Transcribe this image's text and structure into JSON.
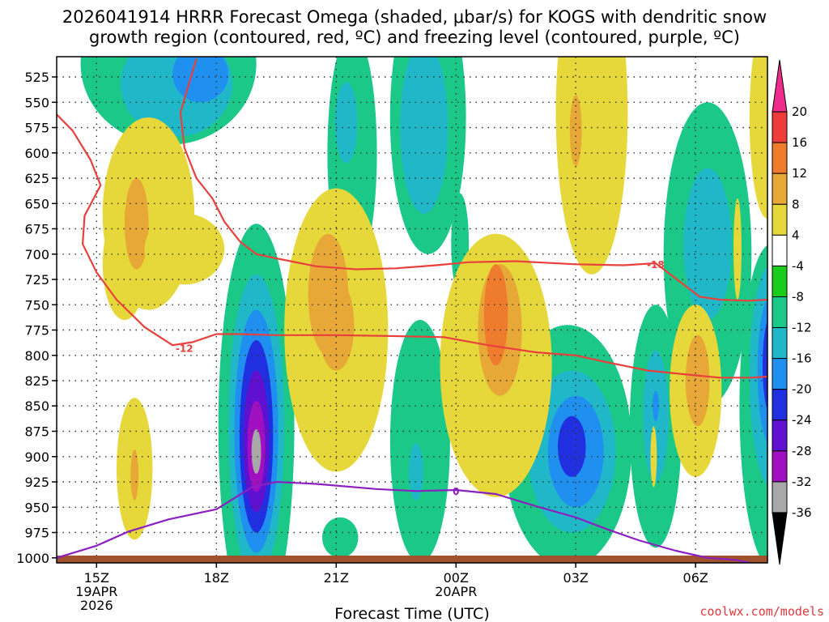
{
  "title": {
    "line1": "2026041914 HRRR Forecast Omega (shaded, μbar/s) for KOGS with dendritic snow",
    "line2": "growth region (contoured, red, ºC) and freezing level (contoured, purple, ºC)"
  },
  "xlabel": "Forecast Time (UTC)",
  "credit": "coolwx.com/models",
  "colors": {
    "frame": "#000000",
    "grid": "#333333",
    "ground": "#a0522d",
    "dgz_contour": "#e8403c",
    "freezing_contour": "#8c1fc0"
  },
  "chart_data": {
    "type": "heatmap",
    "title": "2026041914 HRRR Forecast Omega (shaded, μbar/s) for KOGS with dendritic snow growth region (contoured, red, ºC) and freezing level (contoured, purple, ºC)",
    "xlabel": "Forecast Time (UTC)",
    "ylabel": "Pressure (hPa)",
    "xlim": [
      14.0,
      31.8
    ],
    "ylim": [
      1005,
      505
    ],
    "grid": true,
    "x_ticks": [
      {
        "value": 15,
        "label": "15Z",
        "sub1": "19APR",
        "sub2": "2026"
      },
      {
        "value": 18,
        "label": "18Z"
      },
      {
        "value": 21,
        "label": "21Z"
      },
      {
        "value": 24,
        "label": "00Z",
        "sub1": "20APR"
      },
      {
        "value": 27,
        "label": "03Z"
      },
      {
        "value": 30,
        "label": "06Z"
      }
    ],
    "y_ticks": [
      525,
      550,
      575,
      600,
      625,
      650,
      675,
      700,
      725,
      750,
      775,
      800,
      825,
      850,
      875,
      900,
      925,
      950,
      975,
      1000
    ],
    "colorbar": {
      "labels": [
        "20",
        "16",
        "12",
        "8",
        "4",
        "-4",
        "-8",
        "-12",
        "-16",
        "-20",
        "-24",
        "-28",
        "-32",
        "-36"
      ],
      "bins": [
        {
          "color": "#ee2c8c"
        },
        {
          "color": "#ee3c3c"
        },
        {
          "color": "#ee7c2c"
        },
        {
          "color": "#e8a838"
        },
        {
          "color": "#e6d83a"
        },
        {
          "color": "#ffffff"
        },
        {
          "color": "#1ccc1c"
        },
        {
          "color": "#1cc888"
        },
        {
          "color": "#20b8c8"
        },
        {
          "color": "#2090f0"
        },
        {
          "color": "#2030e0"
        },
        {
          "color": "#6010d0"
        },
        {
          "color": "#a010c0"
        },
        {
          "color": "#a8a8a8"
        },
        {
          "color": "#000000"
        }
      ]
    },
    "omega_features": [
      {
        "t": 16.8,
        "p": 512,
        "rt": 2.2,
        "rp": 80,
        "value": -8
      },
      {
        "t": 17.0,
        "p": 532,
        "rt": 1.4,
        "rp": 52,
        "value": -12
      },
      {
        "t": 17.6,
        "p": 522,
        "rt": 0.7,
        "rp": 28,
        "value": -16
      },
      {
        "t": 21.4,
        "p": 600,
        "rt": 0.62,
        "rp": 120,
        "value": -8
      },
      {
        "t": 21.25,
        "p": 570,
        "rt": 0.28,
        "rp": 40,
        "value": -12
      },
      {
        "t": 23.3,
        "p": 565,
        "rt": 0.95,
        "rp": 135,
        "value": -8
      },
      {
        "t": 23.2,
        "p": 575,
        "rt": 0.6,
        "rp": 85,
        "value": -12
      },
      {
        "t": 24.1,
        "p": 690,
        "rt": 0.22,
        "rp": 50,
        "value": -8
      },
      {
        "t": 30.3,
        "p": 700,
        "rt": 1.1,
        "rp": 150,
        "value": -8
      },
      {
        "t": 30.3,
        "p": 690,
        "rt": 0.6,
        "rp": 75,
        "value": -12
      },
      {
        "t": 19.0,
        "p": 870,
        "rt": 0.95,
        "rp": 200,
        "value": -8
      },
      {
        "t": 19.0,
        "p": 870,
        "rt": 0.7,
        "rp": 150,
        "value": -12
      },
      {
        "t": 19.0,
        "p": 875,
        "rt": 0.55,
        "rp": 120,
        "value": -16
      },
      {
        "t": 19.0,
        "p": 880,
        "rt": 0.42,
        "rp": 95,
        "value": -20
      },
      {
        "t": 19.0,
        "p": 885,
        "rt": 0.32,
        "rp": 70,
        "value": -24
      },
      {
        "t": 19.0,
        "p": 890,
        "rt": 0.22,
        "rp": 45,
        "value": -28
      },
      {
        "t": 19.0,
        "p": 895,
        "rt": 0.12,
        "rp": 22,
        "value": -32
      },
      {
        "t": 23.1,
        "p": 885,
        "rt": 0.75,
        "rp": 120,
        "value": -8
      },
      {
        "t": 23.0,
        "p": 915,
        "rt": 0.18,
        "rp": 28,
        "value": -12
      },
      {
        "t": 21.1,
        "p": 980,
        "rt": 0.45,
        "rp": 20,
        "value": -8
      },
      {
        "t": 26.8,
        "p": 890,
        "rt": 1.6,
        "rp": 120,
        "value": -8
      },
      {
        "t": 26.9,
        "p": 895,
        "rt": 1.1,
        "rp": 80,
        "value": -12
      },
      {
        "t": 27.0,
        "p": 895,
        "rt": 0.7,
        "rp": 55,
        "value": -16
      },
      {
        "t": 26.9,
        "p": 890,
        "rt": 0.35,
        "rp": 30,
        "value": -20
      },
      {
        "t": 29.0,
        "p": 870,
        "rt": 0.65,
        "rp": 120,
        "value": -8
      },
      {
        "t": 29.0,
        "p": 860,
        "rt": 0.32,
        "rp": 65,
        "value": -12
      },
      {
        "t": 29.0,
        "p": 850,
        "rt": 0.08,
        "rp": 15,
        "value": -16
      },
      {
        "t": 31.9,
        "p": 850,
        "rt": 0.8,
        "rp": 160,
        "value": -8
      },
      {
        "t": 31.9,
        "p": 820,
        "rt": 0.55,
        "rp": 110,
        "value": -12
      },
      {
        "t": 31.9,
        "p": 815,
        "rt": 0.35,
        "rp": 75,
        "value": -16
      },
      {
        "t": 31.9,
        "p": 810,
        "rt": 0.22,
        "rp": 50,
        "value": -20
      },
      {
        "t": 31.9,
        "p": 805,
        "rt": 0.12,
        "rp": 25,
        "value": -24
      },
      {
        "t": 16.3,
        "p": 660,
        "rt": 1.15,
        "rp": 95,
        "value": 4
      },
      {
        "t": 15.7,
        "p": 710,
        "rt": 0.55,
        "rp": 55,
        "value": 4
      },
      {
        "t": 16.0,
        "p": 670,
        "rt": 0.3,
        "rp": 45,
        "value": 8
      },
      {
        "t": 15.95,
        "p": 912,
        "rt": 0.45,
        "rp": 70,
        "value": 4
      },
      {
        "t": 15.95,
        "p": 918,
        "rt": 0.1,
        "rp": 25,
        "value": 8
      },
      {
        "t": 17.2,
        "p": 695,
        "rt": 1.0,
        "rp": 35,
        "value": 4
      },
      {
        "t": 21.0,
        "p": 775,
        "rt": 1.3,
        "rp": 140,
        "value": 4
      },
      {
        "t": 20.8,
        "p": 740,
        "rt": 0.5,
        "rp": 60,
        "value": 8
      },
      {
        "t": 21.0,
        "p": 770,
        "rt": 0.45,
        "rp": 45,
        "value": 8
      },
      {
        "t": 25.0,
        "p": 810,
        "rt": 1.4,
        "rp": 130,
        "value": 4
      },
      {
        "t": 25.0,
        "p": 760,
        "rt": 1.1,
        "rp": 80,
        "value": 4
      },
      {
        "t": 25.1,
        "p": 775,
        "rt": 0.55,
        "rp": 65,
        "value": 8
      },
      {
        "t": 25.0,
        "p": 760,
        "rt": 0.3,
        "rp": 50,
        "value": 12
      },
      {
        "t": 27.4,
        "p": 560,
        "rt": 0.9,
        "rp": 160,
        "value": 4
      },
      {
        "t": 27.0,
        "p": 578,
        "rt": 0.15,
        "rp": 35,
        "value": 8
      },
      {
        "t": 30.0,
        "p": 835,
        "rt": 0.65,
        "rp": 85,
        "value": 4
      },
      {
        "t": 30.05,
        "p": 825,
        "rt": 0.3,
        "rp": 45,
        "value": 8
      },
      {
        "t": 31.8,
        "p": 565,
        "rt": 0.45,
        "rp": 100,
        "value": 4
      },
      {
        "t": 31.05,
        "p": 695,
        "rt": 0.1,
        "rp": 50,
        "value": 4
      },
      {
        "t": 28.95,
        "p": 900,
        "rt": 0.08,
        "rp": 30,
        "value": 4
      }
    ],
    "dgz_contours": [
      {
        "label": "-12",
        "label_pos": [
          17.2,
          793
        ],
        "t": [
          14.0,
          14.4,
          14.85,
          15.1,
          14.7,
          14.65,
          15.0,
          15.5,
          16.2,
          16.9,
          17.4,
          18.0,
          18.6,
          19.5,
          21.0,
          22.5,
          23.7,
          24.8,
          26.0,
          27.0,
          27.8,
          28.8,
          29.8,
          30.6,
          31.4,
          31.8
        ],
        "p": [
          562,
          578,
          607,
          632,
          662,
          690,
          718,
          745,
          772,
          790,
          787,
          779,
          779,
          780,
          780,
          781,
          782,
          790,
          797,
          800,
          807,
          815,
          819,
          822,
          822,
          821
        ]
      },
      {
        "label": "-18",
        "label_pos": [
          29.0,
          710
        ],
        "t": [
          17.5,
          17.1,
          17.2,
          17.5,
          17.9,
          18.2,
          18.6,
          19.0,
          19.6,
          20.5,
          21.5,
          22.5,
          23.5,
          24.3,
          25.5,
          27.0,
          28.2,
          29.0,
          29.6,
          30.1,
          30.6,
          31.3,
          31.8
        ],
        "p": [
          507,
          560,
          595,
          625,
          645,
          668,
          688,
          700,
          705,
          712,
          715,
          714,
          711,
          708,
          707,
          710,
          711,
          709,
          727,
          742,
          745,
          746,
          745
        ]
      }
    ],
    "freezing_contour": {
      "label": "0",
      "label_pos": [
        24.0,
        934
      ],
      "t": [
        14.0,
        14.5,
        15.0,
        15.8,
        16.8,
        18.0,
        18.9,
        19.5,
        20.5,
        22.0,
        23.0,
        24.0,
        25.0,
        26.0,
        27.0,
        27.8,
        28.6,
        29.5,
        30.3,
        31.0,
        31.5
      ],
      "p": [
        1000,
        994,
        988,
        974,
        962,
        952,
        930,
        925,
        927,
        932,
        934,
        933,
        937,
        949,
        960,
        972,
        983,
        993,
        1000,
        1002,
        1006
      ]
    }
  }
}
